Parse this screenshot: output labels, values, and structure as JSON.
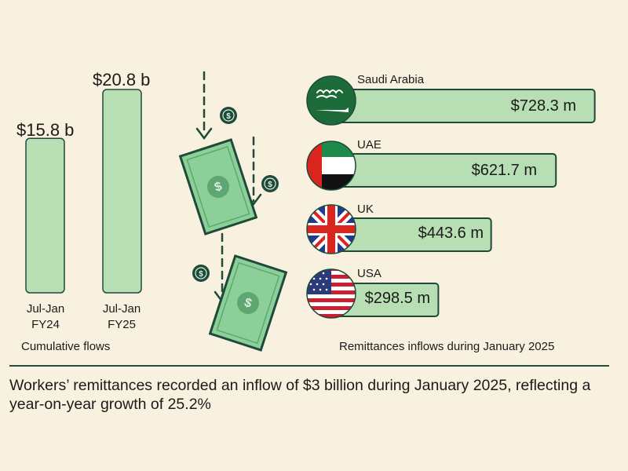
{
  "colors": {
    "background": "#f8f1df",
    "bar_fill": "#b8deb4",
    "bar_border": "#1f4a3a",
    "dark_green": "#1f4a3a",
    "money_green": "#8ccf98"
  },
  "chart_data": [
    {
      "type": "bar",
      "categories": [
        "Jul-Jan FY24",
        "Jul-Jan FY25"
      ],
      "category_lines": [
        [
          "Jul-Jan",
          "FY24"
        ],
        [
          "Jul-Jan",
          "FY25"
        ]
      ],
      "values": [
        15.8,
        20.8
      ],
      "value_labels": [
        "$15.8 b",
        "$20.8 b"
      ],
      "unit": "billion USD",
      "caption": "Cumulative flows",
      "title": "",
      "xlabel": "",
      "ylabel": ""
    },
    {
      "type": "bar",
      "orientation": "horizontal",
      "categories": [
        "Saudi Arabia",
        "UAE",
        "UK",
        "USA"
      ],
      "values": [
        728.3,
        621.7,
        443.6,
        298.5
      ],
      "value_labels": [
        "$728.3 m",
        "$621.7 m",
        "$443.6 m",
        "$298.5 m"
      ],
      "icons": [
        "flag-saudi-arabia-icon",
        "flag-uae-icon",
        "flag-uk-icon",
        "flag-usa-icon"
      ],
      "unit": "million USD",
      "caption": "Remittances inflows during January 2025",
      "title": "",
      "xlabel": "",
      "ylabel": ""
    }
  ],
  "illustration": {
    "icons": [
      "dollar-bill-icon",
      "dollar-coin-icon",
      "down-arrow-icon"
    ]
  },
  "headline": "Workers’ remittances recorded an inflow of $3 billion during January 2025, reflecting a year-on-year growth of 25.2%"
}
